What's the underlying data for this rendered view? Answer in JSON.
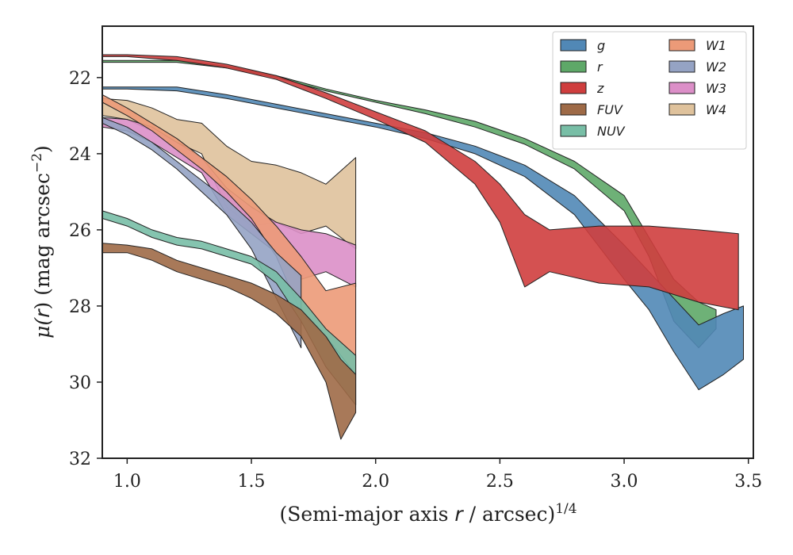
{
  "chart_data": {
    "type": "area",
    "xlabel_main": "(Semi-major axis ",
    "xlabel_var": "r",
    "xlabel_mid": " / arcsec)",
    "xlabel_sup": "1/4",
    "ylabel_main": "μ(",
    "ylabel_var": "r",
    "ylabel_mid": ") (mag arcsec",
    "ylabel_sup": "−2",
    "ylabel_end": ")",
    "xlim": [
      0.9,
      3.52
    ],
    "ylim": [
      32.0,
      20.65
    ],
    "y_inverted": true,
    "xticks": [
      1.0,
      1.5,
      2.0,
      2.5,
      3.0,
      3.5
    ],
    "xtick_labels": [
      "1.0",
      "1.5",
      "2.0",
      "2.5",
      "3.0",
      "3.5"
    ],
    "yticks": [
      22,
      24,
      26,
      28,
      30,
      32
    ],
    "ytick_labels": [
      "22",
      "24",
      "26",
      "28",
      "30",
      "32"
    ],
    "grid": false,
    "legend_position": "top-right",
    "legend_columns": 2,
    "series": [
      {
        "name": "W4",
        "color": "#dfc29c",
        "x": [
          0.9,
          1.0,
          1.1,
          1.2,
          1.3,
          1.4,
          1.5,
          1.6,
          1.7,
          1.8,
          1.92
        ],
        "top": [
          22.55,
          22.6,
          22.8,
          23.1,
          23.2,
          23.8,
          24.2,
          24.3,
          24.5,
          24.8,
          24.1
        ],
        "bot": [
          23.0,
          23.1,
          23.4,
          23.7,
          24.0,
          25.4,
          25.9,
          25.8,
          26.1,
          25.9,
          26.5
        ]
      },
      {
        "name": "W3",
        "color": "#dc8fc8",
        "x": [
          0.9,
          1.0,
          1.1,
          1.2,
          1.3,
          1.4,
          1.5,
          1.6,
          1.7,
          1.8,
          1.92
        ],
        "top": [
          23.05,
          23.1,
          23.3,
          23.7,
          24.1,
          24.9,
          25.4,
          25.8,
          26.0,
          26.1,
          26.4
        ],
        "bot": [
          23.3,
          23.4,
          23.7,
          24.1,
          24.5,
          25.6,
          26.1,
          26.6,
          27.3,
          27.1,
          27.5
        ]
      },
      {
        "name": "W1",
        "color": "#ec9a78",
        "x": [
          0.9,
          1.0,
          1.1,
          1.2,
          1.3,
          1.4,
          1.5,
          1.6,
          1.7,
          1.8,
          1.92
        ],
        "top": [
          22.45,
          22.8,
          23.2,
          23.6,
          24.1,
          24.6,
          25.2,
          25.9,
          26.7,
          27.6,
          27.4
        ],
        "bot": [
          22.65,
          23.0,
          23.4,
          23.9,
          24.4,
          25.0,
          25.7,
          26.7,
          28.2,
          28.8,
          29.8
        ]
      },
      {
        "name": "W2",
        "color": "#95a3c4",
        "x": [
          0.9,
          1.0,
          1.1,
          1.2,
          1.3,
          1.4,
          1.5,
          1.6,
          1.7
        ],
        "top": [
          23.05,
          23.3,
          23.7,
          24.2,
          24.7,
          25.2,
          25.8,
          26.6,
          27.2
        ],
        "bot": [
          23.2,
          23.5,
          23.9,
          24.4,
          25.0,
          25.6,
          26.5,
          27.8,
          29.1
        ]
      },
      {
        "name": "NUV",
        "color": "#78bea6",
        "x": [
          0.9,
          1.0,
          1.1,
          1.2,
          1.3,
          1.4,
          1.5,
          1.6,
          1.7,
          1.8,
          1.92
        ],
        "top": [
          25.5,
          25.7,
          26.0,
          26.2,
          26.3,
          26.5,
          26.7,
          27.1,
          27.8,
          28.6,
          29.3
        ],
        "bot": [
          25.7,
          25.9,
          26.2,
          26.4,
          26.5,
          26.7,
          26.9,
          27.4,
          28.4,
          29.6,
          30.6
        ]
      },
      {
        "name": "FUV",
        "color": "#9e6a47",
        "x": [
          0.9,
          1.0,
          1.1,
          1.2,
          1.3,
          1.4,
          1.5,
          1.6,
          1.7,
          1.8,
          1.86,
          1.92
        ],
        "top": [
          26.35,
          26.4,
          26.5,
          26.8,
          27.0,
          27.2,
          27.4,
          27.7,
          28.1,
          28.8,
          29.4,
          29.8
        ],
        "bot": [
          26.6,
          26.6,
          26.8,
          27.1,
          27.3,
          27.5,
          27.8,
          28.2,
          28.8,
          30.0,
          31.5,
          30.8
        ]
      },
      {
        "name": "r",
        "color": "#5ea868",
        "x": [
          0.9,
          1.0,
          1.2,
          1.4,
          1.6,
          1.8,
          2.0,
          2.2,
          2.4,
          2.6,
          2.8,
          3.0,
          3.1,
          3.2,
          3.3,
          3.37
        ],
        "top": [
          21.55,
          21.55,
          21.55,
          21.7,
          21.95,
          22.3,
          22.6,
          22.85,
          23.15,
          23.6,
          24.2,
          25.1,
          26.2,
          27.3,
          27.9,
          28.1
        ],
        "bot": [
          21.6,
          21.6,
          21.6,
          21.75,
          22.0,
          22.35,
          22.65,
          22.95,
          23.3,
          23.75,
          24.4,
          25.5,
          26.7,
          28.4,
          29.1,
          28.6
        ]
      },
      {
        "name": "g",
        "color": "#5188b6",
        "x": [
          0.9,
          1.0,
          1.2,
          1.4,
          1.6,
          1.8,
          2.0,
          2.2,
          2.4,
          2.6,
          2.8,
          3.0,
          3.1,
          3.2,
          3.3,
          3.4,
          3.48
        ],
        "top": [
          22.25,
          22.25,
          22.25,
          22.45,
          22.7,
          22.95,
          23.2,
          23.45,
          23.8,
          24.3,
          25.1,
          26.4,
          27.1,
          27.8,
          28.5,
          28.2,
          28.0
        ],
        "bot": [
          22.3,
          22.3,
          22.35,
          22.55,
          22.8,
          23.05,
          23.3,
          23.6,
          24.0,
          24.6,
          25.6,
          27.3,
          28.1,
          29.2,
          30.2,
          29.8,
          29.4
        ]
      },
      {
        "name": "z",
        "color": "#cf3e3e",
        "x": [
          0.9,
          1.0,
          1.2,
          1.4,
          1.6,
          1.8,
          2.0,
          2.2,
          2.4,
          2.5,
          2.6,
          2.7,
          2.9,
          3.1,
          3.3,
          3.46
        ],
        "top": [
          21.4,
          21.4,
          21.45,
          21.65,
          21.95,
          22.4,
          22.9,
          23.4,
          24.2,
          24.8,
          25.6,
          26.0,
          25.9,
          25.9,
          26.0,
          26.1
        ],
        "bot": [
          21.45,
          21.45,
          21.55,
          21.75,
          22.05,
          22.55,
          23.1,
          23.7,
          24.8,
          25.8,
          27.5,
          27.1,
          27.4,
          27.5,
          27.9,
          28.1
        ]
      }
    ],
    "legend": [
      {
        "name": "g",
        "color": "#5188b6"
      },
      {
        "name": "r",
        "color": "#5ea868"
      },
      {
        "name": "z",
        "color": "#cf3e3e"
      },
      {
        "name": "FUV",
        "color": "#9e6a47"
      },
      {
        "name": "NUV",
        "color": "#78bea6"
      },
      {
        "name": "W1",
        "color": "#ec9a78"
      },
      {
        "name": "W2",
        "color": "#95a3c4"
      },
      {
        "name": "W3",
        "color": "#dc8fc8"
      },
      {
        "name": "W4",
        "color": "#dfc29c"
      }
    ]
  }
}
